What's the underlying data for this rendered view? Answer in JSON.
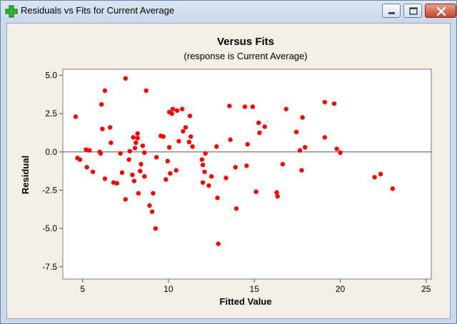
{
  "window": {
    "title": "Residuals vs Fits for Current Average",
    "icon": "green-plus-icon",
    "controls": [
      "minimize-icon",
      "maximize-icon",
      "close-icon"
    ]
  },
  "chart_data": {
    "type": "scatter",
    "title": "Versus Fits",
    "subtitle": "(response is Current Average)",
    "xlabel": "Fitted Value",
    "ylabel": "Residual",
    "xlim": [
      3.85,
      25.3
    ],
    "ylim": [
      -8.3,
      5.4
    ],
    "xticks": [
      5,
      10,
      15,
      20,
      25
    ],
    "xtick_labels": [
      "5",
      "10",
      "15",
      "20",
      "25"
    ],
    "yticks": [
      5.0,
      2.5,
      0.0,
      -2.5,
      -5.0,
      -7.5
    ],
    "ytick_labels": [
      "5.0",
      "2.5",
      "0.0",
      "-2.5",
      "-5.0",
      "-7.5"
    ],
    "reference_line_y": 0,
    "grid": false,
    "point_color": "#ff0000",
    "plot_background": "#ffffff",
    "frame_background": "#f3efe6",
    "points": [
      [
        4.6,
        2.3
      ],
      [
        4.7,
        -0.4
      ],
      [
        4.85,
        -0.5
      ],
      [
        5.2,
        0.15
      ],
      [
        5.25,
        -1.0
      ],
      [
        5.4,
        0.1
      ],
      [
        5.6,
        -1.3
      ],
      [
        6.0,
        0.0
      ],
      [
        6.05,
        -0.1
      ],
      [
        6.1,
        3.1
      ],
      [
        6.15,
        1.5
      ],
      [
        6.3,
        4.0
      ],
      [
        6.3,
        -1.75
      ],
      [
        6.6,
        1.6
      ],
      [
        6.65,
        0.6
      ],
      [
        6.8,
        -2.0
      ],
      [
        7.0,
        -2.05
      ],
      [
        7.2,
        -0.1
      ],
      [
        7.3,
        -1.35
      ],
      [
        7.5,
        4.8
      ],
      [
        7.5,
        -3.1
      ],
      [
        7.7,
        -0.5
      ],
      [
        7.75,
        0.05
      ],
      [
        7.9,
        -1.5
      ],
      [
        7.95,
        0.95
      ],
      [
        8.0,
        -1.9
      ],
      [
        8.05,
        0.25
      ],
      [
        8.1,
        0.6
      ],
      [
        8.2,
        1.2
      ],
      [
        8.2,
        0.9
      ],
      [
        8.25,
        -2.7
      ],
      [
        8.35,
        -1.25
      ],
      [
        8.4,
        -0.8
      ],
      [
        8.5,
        0.4
      ],
      [
        8.6,
        -0.05
      ],
      [
        8.6,
        -1.6
      ],
      [
        8.7,
        4.0
      ],
      [
        8.9,
        -3.5
      ],
      [
        9.05,
        -3.9
      ],
      [
        9.1,
        -2.7
      ],
      [
        9.25,
        -5.0
      ],
      [
        9.3,
        -0.35
      ],
      [
        9.55,
        1.05
      ],
      [
        9.7,
        1.0
      ],
      [
        9.85,
        -1.8
      ],
      [
        9.95,
        -0.6
      ],
      [
        10.05,
        0.3
      ],
      [
        10.05,
        2.6
      ],
      [
        10.1,
        -1.4
      ],
      [
        10.2,
        2.5
      ],
      [
        10.25,
        2.8
      ],
      [
        10.45,
        -1.2
      ],
      [
        10.5,
        2.7
      ],
      [
        10.6,
        0.7
      ],
      [
        10.8,
        2.8
      ],
      [
        10.85,
        1.35
      ],
      [
        11.0,
        1.6
      ],
      [
        11.2,
        0.65
      ],
      [
        11.25,
        2.35
      ],
      [
        11.3,
        1.0
      ],
      [
        11.4,
        0.35
      ],
      [
        11.95,
        -0.5
      ],
      [
        12.0,
        -0.85
      ],
      [
        12.0,
        -2.0
      ],
      [
        12.1,
        -1.3
      ],
      [
        12.15,
        -0.1
      ],
      [
        12.35,
        -2.2
      ],
      [
        12.5,
        -1.6
      ],
      [
        12.8,
        0.35
      ],
      [
        12.85,
        -3.0
      ],
      [
        12.9,
        -6.0
      ],
      [
        13.35,
        -1.7
      ],
      [
        13.55,
        3.0
      ],
      [
        13.6,
        0.8
      ],
      [
        13.9,
        -1.0
      ],
      [
        13.95,
        -3.7
      ],
      [
        14.45,
        2.95
      ],
      [
        14.55,
        -0.9
      ],
      [
        14.6,
        0.5
      ],
      [
        14.9,
        2.95
      ],
      [
        15.1,
        -2.6
      ],
      [
        15.25,
        1.9
      ],
      [
        15.3,
        1.25
      ],
      [
        15.6,
        1.65
      ],
      [
        16.3,
        -2.65
      ],
      [
        16.35,
        -2.9
      ],
      [
        16.65,
        -0.8
      ],
      [
        16.85,
        2.8
      ],
      [
        17.45,
        1.3
      ],
      [
        17.65,
        0.1
      ],
      [
        17.75,
        -1.2
      ],
      [
        17.8,
        2.25
      ],
      [
        17.95,
        0.3
      ],
      [
        19.1,
        3.25
      ],
      [
        19.1,
        0.95
      ],
      [
        19.65,
        3.15
      ],
      [
        19.8,
        0.2
      ],
      [
        20.0,
        -0.05
      ],
      [
        22.0,
        -1.65
      ],
      [
        22.35,
        -1.45
      ],
      [
        23.05,
        -2.4
      ]
    ]
  }
}
